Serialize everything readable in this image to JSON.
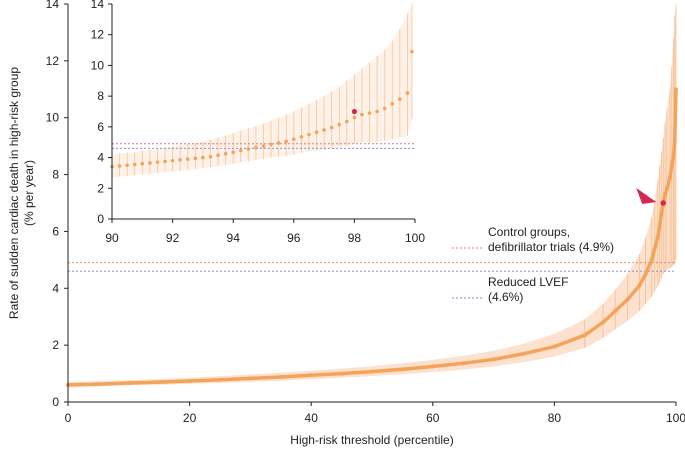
{
  "chart_data": [
    {
      "type": "scatter",
      "panel": "main",
      "xlabel": "High-risk threshold (percentile)",
      "ylabel_lines": [
        "Rate of sudden cardiac death in high-risk group",
        "(% per year)"
      ],
      "xlim": [
        0,
        100
      ],
      "ylim": [
        0,
        14
      ],
      "xticks": [
        0,
        20,
        40,
        60,
        80,
        100
      ],
      "yticks": [
        0,
        2,
        4,
        6,
        8,
        10,
        12,
        14
      ],
      "grid": false,
      "series": [
        {
          "role": "estimate-with-ci",
          "x": [
            0,
            5,
            10,
            15,
            20,
            25,
            30,
            35,
            40,
            45,
            50,
            55,
            60,
            65,
            70,
            75,
            80,
            85,
            88,
            90,
            92,
            94,
            95,
            96,
            96.5,
            97,
            97.3,
            97.6,
            97.9,
            98.2,
            98.5,
            99,
            99.3,
            99.6,
            99.8,
            100
          ],
          "y": [
            0.6,
            0.63,
            0.67,
            0.7,
            0.74,
            0.78,
            0.83,
            0.88,
            0.94,
            1.0,
            1.07,
            1.15,
            1.25,
            1.36,
            1.5,
            1.7,
            1.95,
            2.35,
            2.8,
            3.2,
            3.6,
            4.1,
            4.5,
            5.0,
            5.4,
            5.8,
            6.2,
            6.6,
            7.0,
            7.3,
            7.5,
            7.9,
            8.3,
            8.7,
            9.2,
            11.0
          ],
          "lower": [
            0.52,
            0.55,
            0.58,
            0.61,
            0.64,
            0.67,
            0.71,
            0.75,
            0.8,
            0.85,
            0.91,
            0.98,
            1.05,
            1.14,
            1.25,
            1.4,
            1.6,
            1.9,
            2.25,
            2.55,
            2.85,
            3.2,
            3.45,
            3.7,
            3.9,
            4.05,
            4.2,
            4.35,
            4.5,
            4.6,
            4.65,
            4.7,
            4.75,
            4.8,
            4.85,
            5.0
          ],
          "upper": [
            0.7,
            0.73,
            0.77,
            0.81,
            0.86,
            0.91,
            0.97,
            1.03,
            1.1,
            1.18,
            1.26,
            1.36,
            1.48,
            1.62,
            1.8,
            2.05,
            2.4,
            2.9,
            3.45,
            3.95,
            4.5,
            5.2,
            5.8,
            6.5,
            7.1,
            7.8,
            8.3,
            8.8,
            9.3,
            9.8,
            10.3,
            11.0,
            11.8,
            12.8,
            13.6,
            14.0
          ]
        }
      ],
      "highlight": {
        "x": 97.9,
        "y": 7.0,
        "color": "#d6274f"
      },
      "reference_lines": [
        {
          "name": "Control groups, defibrillator trials (4.9%)",
          "label_lines": [
            "Control groups,",
            "defibrillator trials (4.9%)"
          ],
          "y": 4.9,
          "color": "#e07a7a"
        },
        {
          "name": "Reduced LVEF (4.6%)",
          "label_lines": [
            "Reduced LVEF",
            "(4.6%)"
          ],
          "y": 4.6,
          "color": "#7b7fd0"
        }
      ],
      "colors": {
        "points": "#f4a35a",
        "ci": "#fbd8bd",
        "highlight": "#d6274f",
        "axis": "#222222"
      }
    },
    {
      "type": "scatter",
      "panel": "inset",
      "xlim": [
        90,
        100
      ],
      "ylim": [
        0,
        14
      ],
      "xticks": [
        90,
        92,
        94,
        96,
        98,
        100
      ],
      "yticks": [
        0,
        2,
        4,
        6,
        8,
        10,
        12,
        14
      ],
      "x": [
        90.0,
        90.25,
        90.5,
        90.75,
        91.0,
        91.25,
        91.5,
        91.75,
        92.0,
        92.25,
        92.5,
        92.75,
        93.0,
        93.25,
        93.5,
        93.75,
        94.0,
        94.25,
        94.5,
        94.75,
        95.0,
        95.25,
        95.5,
        95.75,
        96.0,
        96.25,
        96.5,
        96.75,
        97.0,
        97.25,
        97.5,
        97.75,
        98.0,
        98.25,
        98.5,
        98.75,
        99.0,
        99.25,
        99.5,
        99.75,
        99.9
      ],
      "y": [
        3.4,
        3.45,
        3.5,
        3.55,
        3.6,
        3.65,
        3.7,
        3.75,
        3.8,
        3.85,
        3.9,
        3.95,
        4.0,
        4.05,
        4.15,
        4.25,
        4.35,
        4.45,
        4.55,
        4.65,
        4.75,
        4.85,
        4.95,
        5.05,
        5.2,
        5.35,
        5.5,
        5.65,
        5.8,
        5.95,
        6.15,
        6.35,
        6.6,
        6.8,
        6.9,
        7.0,
        7.2,
        7.5,
        7.8,
        8.2,
        10.9
      ],
      "lower": [
        2.7,
        2.75,
        2.8,
        2.85,
        2.9,
        2.95,
        3.0,
        3.05,
        3.1,
        3.15,
        3.2,
        3.25,
        3.3,
        3.35,
        3.45,
        3.5,
        3.6,
        3.7,
        3.75,
        3.85,
        3.9,
        4.0,
        4.05,
        4.1,
        4.2,
        4.3,
        4.4,
        4.45,
        4.5,
        4.6,
        4.7,
        4.8,
        4.9,
        5.0,
        5.0,
        5.05,
        5.1,
        5.2,
        5.3,
        5.4,
        6.5
      ],
      "upper": [
        4.2,
        4.25,
        4.3,
        4.35,
        4.45,
        4.5,
        4.55,
        4.65,
        4.7,
        4.8,
        4.9,
        4.95,
        5.05,
        5.15,
        5.3,
        5.45,
        5.6,
        5.75,
        5.9,
        6.05,
        6.2,
        6.4,
        6.6,
        6.8,
        7.0,
        7.25,
        7.5,
        7.75,
        8.0,
        8.3,
        8.6,
        9.0,
        9.4,
        9.8,
        10.2,
        10.6,
        11.0,
        11.6,
        12.4,
        13.4,
        14.0
      ],
      "highlight": {
        "x": 98.0,
        "y": 7.0
      },
      "reference_lines": [
        {
          "y": 4.9
        },
        {
          "y": 4.6
        }
      ]
    }
  ]
}
